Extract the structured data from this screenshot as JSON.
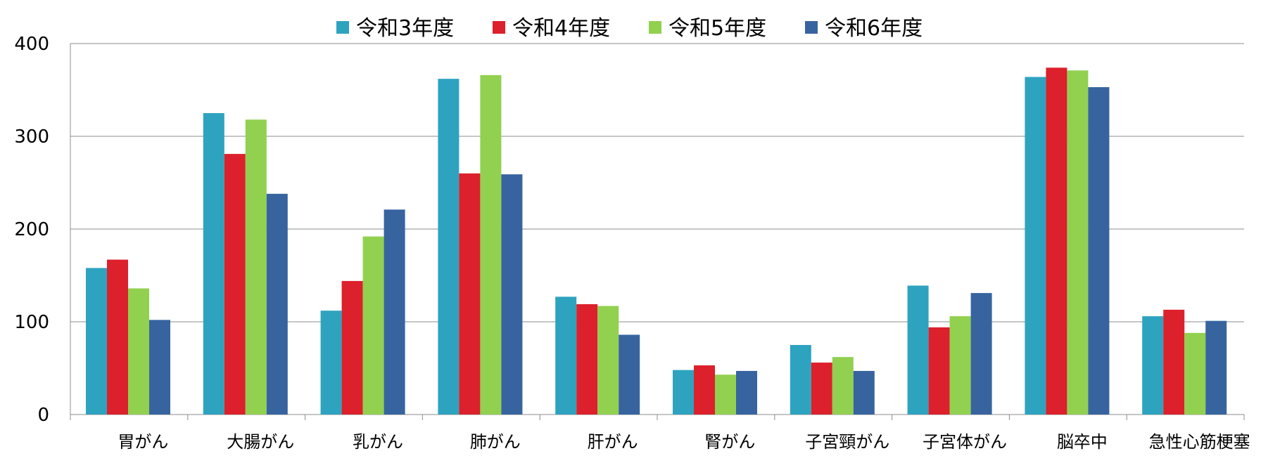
{
  "chart_data": {
    "type": "bar",
    "title": "",
    "xlabel": "",
    "ylabel": "",
    "ylim": [
      0,
      400
    ],
    "yticks": [
      "0",
      "100",
      "200",
      "300",
      "400"
    ],
    "grid": true,
    "legend_position": "top",
    "categories": [
      "胃がん",
      "大腸がん",
      "乳がん",
      "肺がん",
      "肝がん",
      "腎がん",
      "子宮頸がん",
      "子宮体がん",
      "脳卒中",
      "急性心筋梗塞"
    ],
    "series": [
      {
        "name": "令和3年度",
        "color": "#2ea3c0",
        "values": [
          158,
          325,
          112,
          362,
          127,
          48,
          75,
          139,
          364,
          106
        ]
      },
      {
        "name": "令和4年度",
        "color": "#dc202c",
        "values": [
          167,
          281,
          144,
          260,
          119,
          53,
          56,
          94,
          374,
          113
        ]
      },
      {
        "name": "令和5年度",
        "color": "#92d050",
        "values": [
          136,
          318,
          192,
          366,
          117,
          43,
          62,
          106,
          371,
          88
        ]
      },
      {
        "name": "令和6年度",
        "color": "#37649f",
        "values": [
          102,
          238,
          221,
          259,
          86,
          47,
          47,
          131,
          353,
          101
        ]
      }
    ]
  }
}
